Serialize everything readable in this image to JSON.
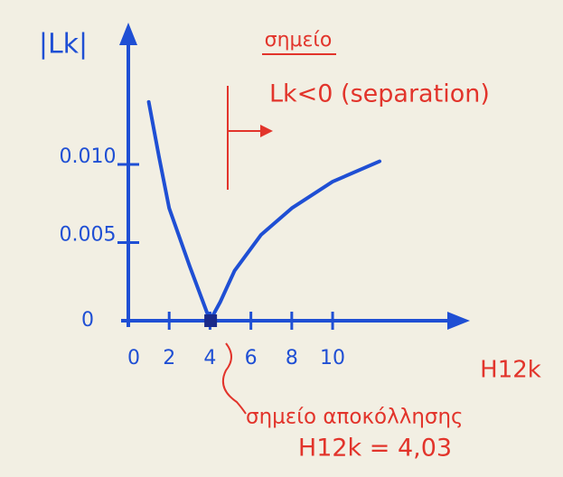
{
  "chart_data": {
    "type": "line",
    "y_label": "|Lk|",
    "x_label": "H12k",
    "x": [
      1,
      1.5,
      2,
      3,
      4,
      4.5,
      5.2,
      6.5,
      8,
      10,
      12.3
    ],
    "values": [
      0.014,
      0.0105,
      0.0072,
      0.0035,
      0,
      0.0012,
      0.0032,
      0.0055,
      0.0072,
      0.0089,
      0.0102
    ],
    "color": "#1f4fd4",
    "marker": {
      "x": 4.03,
      "y": 0
    },
    "xlim": [
      0,
      16.5
    ],
    "ylim": [
      0,
      0.0185
    ],
    "xticks": [
      0,
      2,
      4,
      6,
      8,
      10
    ],
    "yticks": [
      0,
      0.005,
      {
        "value": 0.01,
        "label": "0.010"
      }
    ],
    "annotations": [
      "σημείο",
      "Lk<0 (separation)",
      "σημείο αποκόλλησης",
      "H12k = 4,03"
    ]
  }
}
